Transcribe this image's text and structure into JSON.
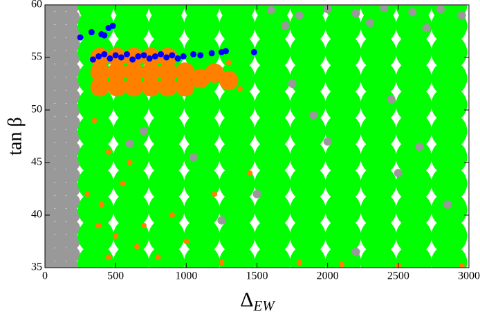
{
  "chart_data": {
    "type": "scatter",
    "xlabel": "Δ",
    "xlabel_sub": "EW",
    "ylabel": "tan β",
    "xlim": [
      0,
      3000
    ],
    "ylim": [
      35,
      60
    ],
    "xticks": [
      0,
      500,
      1000,
      1500,
      2000,
      2500,
      3000
    ],
    "yticks": [
      35,
      40,
      45,
      50,
      55,
      60
    ],
    "grid": false,
    "series": [
      {
        "color": "#999999",
        "x": [
          30,
          110,
          190,
          30,
          110,
          190,
          30,
          110,
          190,
          30,
          110,
          190,
          30,
          110,
          190,
          30,
          110,
          190,
          30,
          110,
          190,
          30,
          110,
          190,
          30,
          110,
          190,
          30,
          110,
          190,
          30,
          110,
          190,
          30,
          110,
          190,
          30,
          110,
          190,
          30,
          110,
          190,
          30,
          110,
          190,
          30,
          110,
          190,
          30,
          110,
          190,
          30,
          110,
          190,
          30,
          110,
          190,
          30,
          110,
          190,
          30,
          110,
          190
        ],
        "y": [
          35,
          35,
          35,
          36.25,
          36.25,
          36.25,
          37.5,
          37.5,
          37.5,
          38.75,
          38.75,
          38.75,
          40,
          40,
          40,
          41.25,
          41.25,
          41.25,
          42.5,
          42.5,
          42.5,
          43.75,
          43.75,
          43.75,
          45,
          45,
          45,
          46.25,
          46.25,
          46.25,
          47.5,
          47.5,
          47.5,
          48.75,
          48.75,
          48.75,
          50,
          50,
          50,
          51.25,
          51.25,
          51.25,
          52.5,
          52.5,
          52.5,
          53.75,
          53.75,
          53.75,
          55,
          55,
          55,
          56.25,
          56.25,
          56.25,
          57.5,
          57.5,
          57.5,
          58.75,
          58.75,
          58.75,
          60,
          60,
          60
        ]
      },
      {
        "color": "#00ff00",
        "x": [
          360,
          610,
          860,
          1110,
          1360,
          1610,
          1860,
          2110,
          2360,
          2610,
          2860,
          360,
          610,
          860,
          1110,
          1360,
          1610,
          1860,
          2110,
          2360,
          2610,
          2860,
          360,
          610,
          860,
          1110,
          1360,
          1610,
          1860,
          2110,
          2360,
          2610,
          2860,
          360,
          610,
          860,
          1110,
          1360,
          1610,
          1860,
          2110,
          2360,
          2610,
          2860,
          360,
          610,
          860,
          1110,
          1360,
          1610,
          1860,
          2110,
          2360,
          2610,
          2860,
          360,
          610,
          860,
          1110,
          1360,
          1610,
          1860,
          2110,
          2360,
          2610,
          2860,
          360,
          610,
          860,
          1110,
          1360,
          1610,
          1860,
          2110,
          2360,
          2610,
          2860,
          360,
          610,
          860,
          1110,
          1360,
          1610,
          1860,
          2110,
          2360,
          2610,
          2860,
          360,
          610,
          860,
          1110,
          1360,
          1610,
          1860,
          2110,
          2360,
          2610,
          2860,
          360,
          610,
          860,
          1110,
          1360,
          1610,
          1860,
          2110,
          2360,
          2610,
          2860,
          360,
          610,
          860,
          1110,
          1360,
          1610,
          1860,
          2110,
          2360,
          2610,
          2860
        ],
        "y": [
          35.5,
          35.5,
          35.5,
          35.5,
          35.5,
          35.5,
          35.5,
          35.5,
          35.5,
          35.5,
          35.5,
          38,
          38,
          38,
          38,
          38,
          38,
          38,
          38,
          38,
          38,
          38,
          40.5,
          40.5,
          40.5,
          40.5,
          40.5,
          40.5,
          40.5,
          40.5,
          40.5,
          40.5,
          40.5,
          43,
          43,
          43,
          43,
          43,
          43,
          43,
          43,
          43,
          43,
          43,
          45.5,
          45.5,
          45.5,
          45.5,
          45.5,
          45.5,
          45.5,
          45.5,
          45.5,
          45.5,
          45.5,
          48,
          48,
          48,
          48,
          48,
          48,
          48,
          48,
          48,
          48,
          48,
          50.5,
          50.5,
          50.5,
          50.5,
          50.5,
          50.5,
          50.5,
          50.5,
          50.5,
          50.5,
          50.5,
          53,
          53,
          53,
          53,
          53,
          53,
          53,
          53,
          53,
          53,
          53,
          55.5,
          55.5,
          55.5,
          55.5,
          55.5,
          55.5,
          55.5,
          55.5,
          55.5,
          55.5,
          55.5,
          58,
          58,
          58,
          58,
          58,
          58,
          58,
          58,
          58,
          58,
          58,
          60,
          60,
          60,
          60,
          60,
          60,
          60,
          60,
          60,
          60,
          60
        ]
      },
      {
        "color": "#999999",
        "x": [
          1600,
          1800,
          2000,
          2200,
          2400,
          2600,
          2800,
          2950,
          1700,
          2300,
          2700,
          1050,
          2000,
          1500,
          2500,
          700,
          2200,
          1900,
          2650,
          1250,
          2850,
          600,
          1750,
          2450
        ],
        "y": [
          59.5,
          59,
          59.6,
          59.2,
          59.7,
          59.3,
          59.6,
          59,
          58,
          58.3,
          57.8,
          45.5,
          47,
          42,
          44,
          48,
          36.5,
          49.5,
          46.5,
          39.5,
          41,
          46.8,
          52.5,
          51
        ]
      },
      {
        "color": "#ff7f00",
        "x": [
          390,
          510,
          630,
          750,
          870,
          990,
          390,
          510,
          630,
          750,
          870,
          990,
          390,
          510,
          630,
          750,
          870,
          1100,
          1200,
          1300
        ],
        "y": [
          52.2,
          52.2,
          52.2,
          52.2,
          52.2,
          52.2,
          53.6,
          53.6,
          53.6,
          53.6,
          53.6,
          53.6,
          55,
          55,
          55,
          55,
          55,
          53,
          53.5,
          52.8
        ]
      },
      {
        "color": "#ff7f00",
        "x": [
          450,
          500,
          400,
          550,
          450,
          650,
          700,
          800,
          900,
          1000,
          600,
          350,
          1250,
          1800,
          2100,
          1450,
          2500,
          2950,
          1200,
          300,
          380,
          1380,
          1100,
          1300
        ],
        "y": [
          36,
          38,
          41,
          43,
          46,
          37,
          39,
          36,
          40,
          37.5,
          45,
          49,
          35.5,
          35.5,
          35.3,
          44,
          35.2,
          35.2,
          42,
          42,
          39,
          52,
          55.2,
          54.5
        ]
      },
      {
        "color": "#0000ff",
        "x": [
          340,
          380,
          420,
          460,
          500,
          540,
          580,
          620,
          660,
          700,
          740,
          780,
          820,
          860,
          900,
          940,
          980,
          1050,
          1100,
          1180,
          1250,
          1280,
          1480,
          250,
          330,
          400,
          450,
          480,
          420
        ],
        "y": [
          54.8,
          55.1,
          55.3,
          54.9,
          55.2,
          55,
          55.3,
          54.8,
          55.1,
          55.2,
          54.9,
          55.1,
          55.3,
          55,
          55.2,
          54.9,
          55.1,
          55.3,
          55.2,
          55.4,
          55.5,
          55.6,
          55.5,
          56.9,
          57.4,
          57.2,
          57.8,
          58,
          57.1
        ]
      }
    ]
  }
}
